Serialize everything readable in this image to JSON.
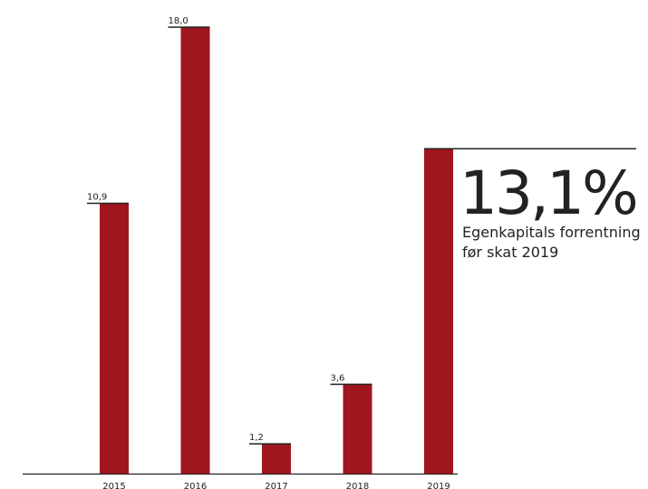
{
  "chart_data": {
    "type": "bar",
    "categories": [
      "2015",
      "2016",
      "2017",
      "2018",
      "2019"
    ],
    "values": [
      10.9,
      18.0,
      1.2,
      3.6,
      13.1
    ],
    "value_labels": [
      "10,9",
      "18,0",
      "1,2",
      "3,6",
      "13,1%"
    ],
    "annotation": [
      "Egenkapitals forrentning",
      "før skat 2019"
    ],
    "color": "#a0161f"
  }
}
